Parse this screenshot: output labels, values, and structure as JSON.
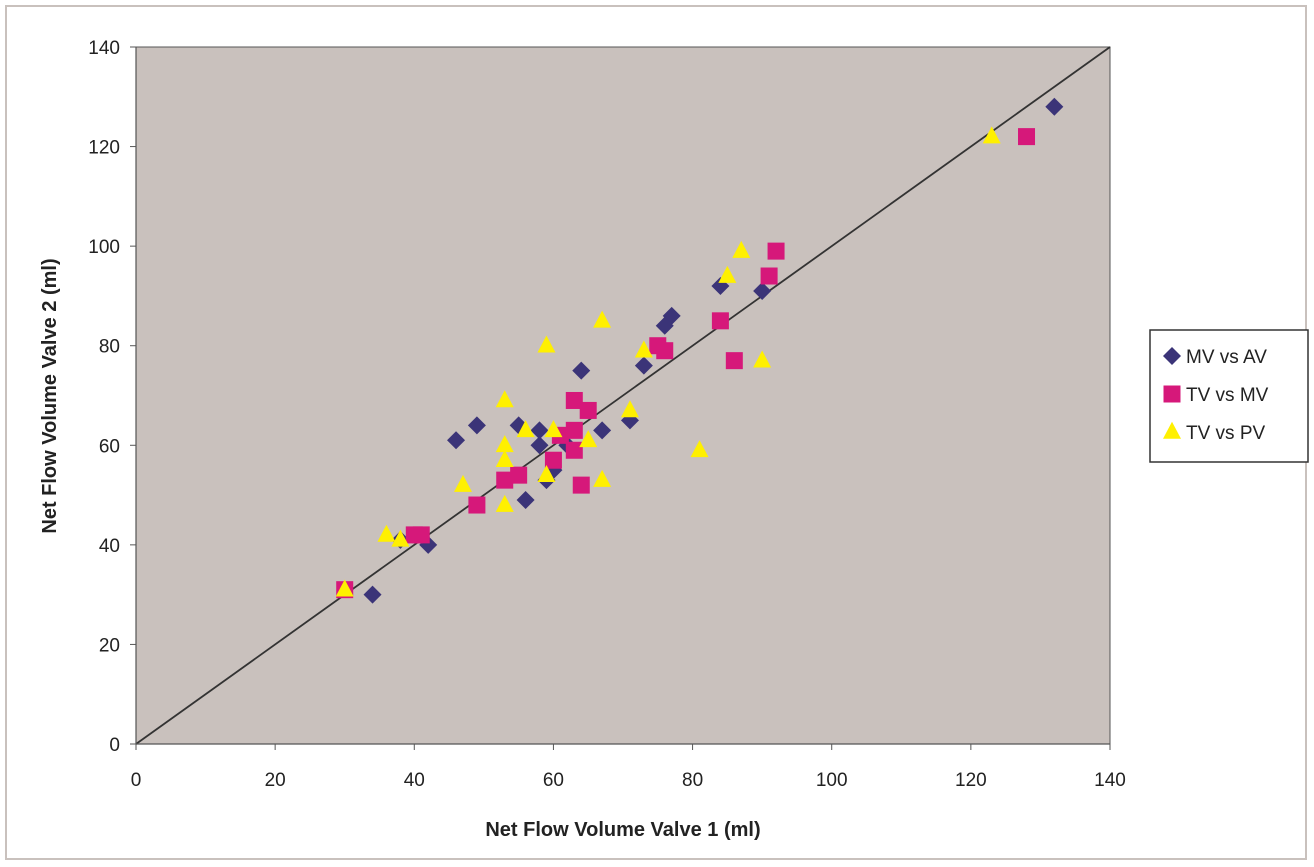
{
  "chart_data": {
    "type": "scatter",
    "xlabel": "Net Flow Volume Valve 1 (ml)",
    "ylabel": "Net Flow Volume Valve 2 (ml)",
    "xlim": [
      0,
      140
    ],
    "ylim": [
      0,
      140
    ],
    "xticks": [
      "0",
      "20",
      "40",
      "60",
      "80",
      "100",
      "120",
      "140"
    ],
    "yticks": [
      "0",
      "20",
      "40",
      "60",
      "80",
      "100",
      "120",
      "140"
    ],
    "grid": false,
    "plot_background": "#c9c1bd",
    "legend_position": "right",
    "identity_line": {
      "from": [
        0,
        0
      ],
      "to": [
        140,
        140
      ],
      "color": "#333333"
    },
    "series": [
      {
        "name": "MV vs AV",
        "marker": "diamond",
        "color": "#3b3478",
        "points": [
          [
            132,
            128
          ],
          [
            84,
            92
          ],
          [
            90,
            91
          ],
          [
            77,
            86
          ],
          [
            76,
            84
          ],
          [
            73,
            76
          ],
          [
            64,
            75
          ],
          [
            71,
            65
          ],
          [
            67,
            63
          ],
          [
            55,
            64
          ],
          [
            58,
            63
          ],
          [
            46,
            61
          ],
          [
            49,
            64
          ],
          [
            58,
            60
          ],
          [
            62,
            60
          ],
          [
            60,
            55
          ],
          [
            59,
            53
          ],
          [
            56,
            49
          ],
          [
            42,
            40
          ],
          [
            38,
            41
          ],
          [
            34,
            30
          ]
        ]
      },
      {
        "name": "TV vs MV",
        "marker": "square",
        "color": "#d6187a",
        "points": [
          [
            128,
            122
          ],
          [
            92,
            99
          ],
          [
            91,
            94
          ],
          [
            84,
            85
          ],
          [
            86,
            77
          ],
          [
            75,
            80
          ],
          [
            76,
            79
          ],
          [
            63,
            69
          ],
          [
            65,
            67
          ],
          [
            63,
            63
          ],
          [
            61,
            62
          ],
          [
            63,
            59
          ],
          [
            60,
            57
          ],
          [
            55,
            54
          ],
          [
            53,
            53
          ],
          [
            64,
            52
          ],
          [
            49,
            48
          ],
          [
            41,
            42
          ],
          [
            40,
            42
          ],
          [
            30,
            31
          ]
        ]
      },
      {
        "name": "TV vs PV",
        "marker": "triangle",
        "color": "#fff000",
        "points": [
          [
            123,
            122
          ],
          [
            87,
            99
          ],
          [
            85,
            94
          ],
          [
            67,
            85
          ],
          [
            59,
            80
          ],
          [
            73,
            79
          ],
          [
            90,
            77
          ],
          [
            53,
            69
          ],
          [
            71,
            67
          ],
          [
            60,
            63
          ],
          [
            56,
            63
          ],
          [
            65,
            61
          ],
          [
            53,
            60
          ],
          [
            53,
            57
          ],
          [
            81,
            59
          ],
          [
            59,
            54
          ],
          [
            67,
            53
          ],
          [
            47,
            52
          ],
          [
            53,
            48
          ],
          [
            36,
            42
          ],
          [
            38,
            41
          ],
          [
            30,
            31
          ]
        ]
      }
    ]
  }
}
